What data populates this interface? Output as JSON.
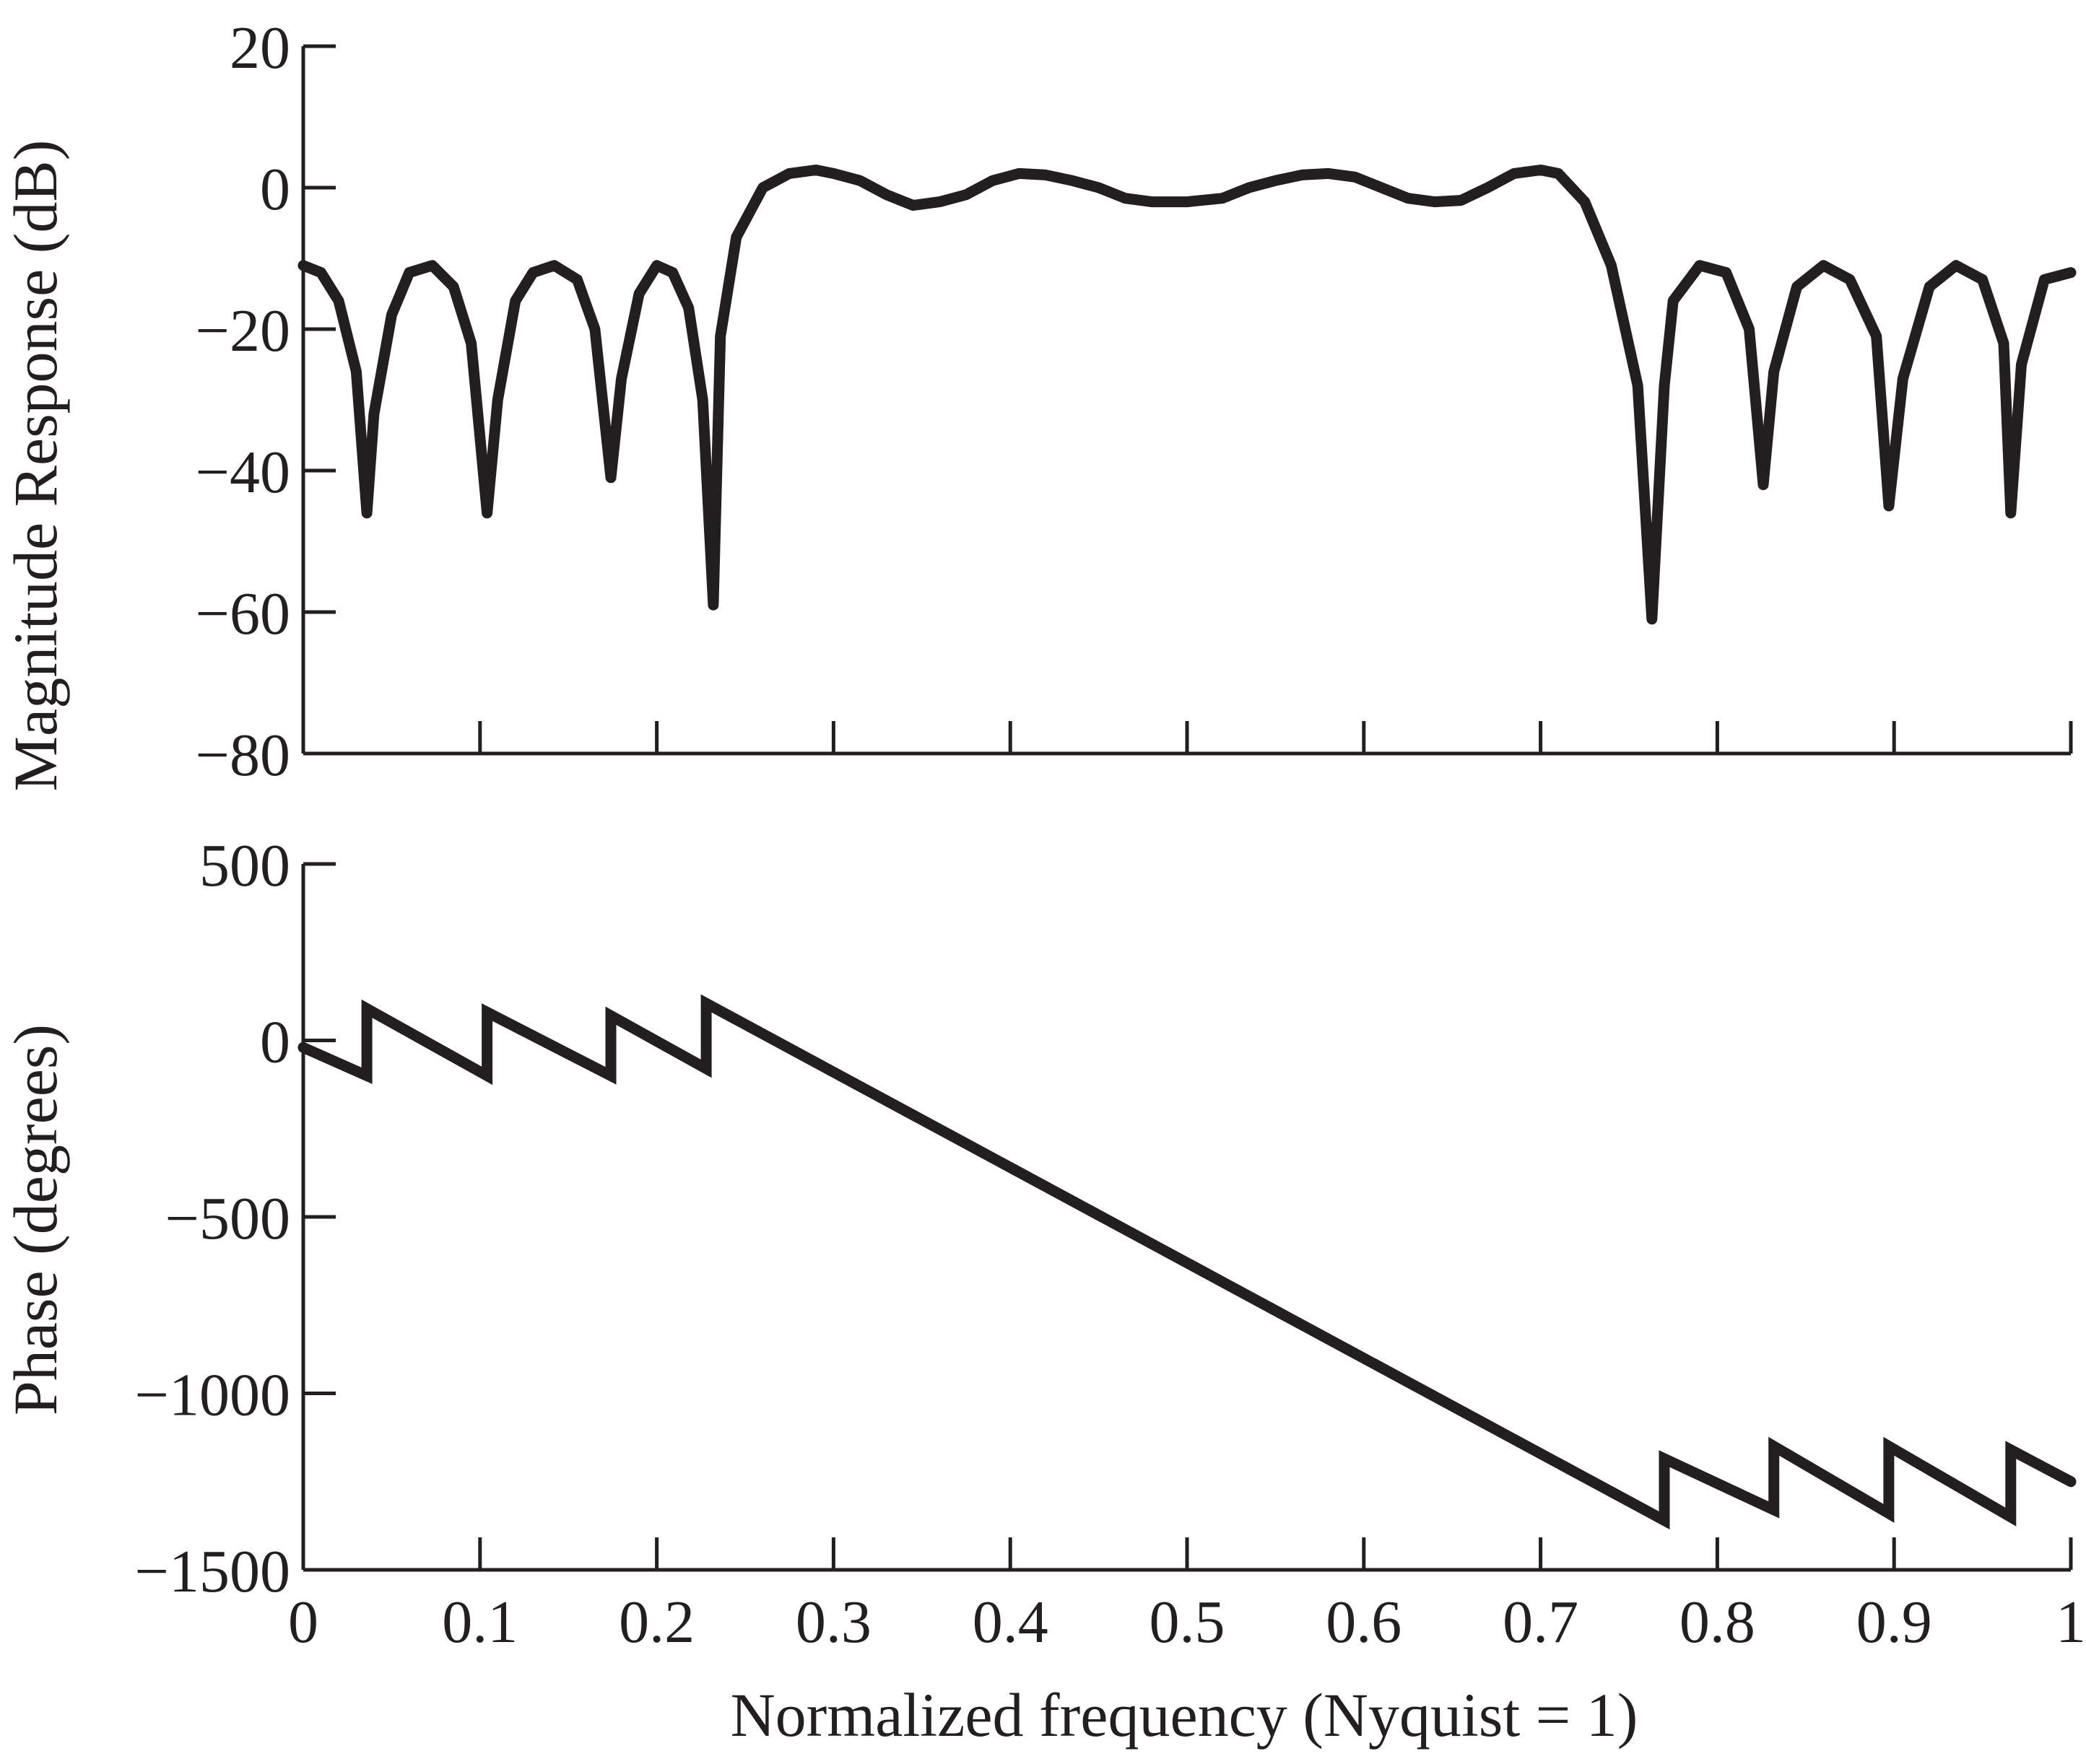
{
  "colors": {
    "line": "#231f20",
    "background": "#ffffff"
  },
  "xlabel": "Normalized frequency (Nyquist = 1)",
  "x_ticks": [
    0,
    0.1,
    0.2,
    0.3,
    0.4,
    0.5,
    0.6,
    0.7,
    0.8,
    0.9,
    1
  ],
  "x_tick_labels": [
    "0",
    "0.1",
    "0.2",
    "0.3",
    "0.4",
    "0.5",
    "0.6",
    "0.7",
    "0.8",
    "0.9",
    "1"
  ],
  "chart_data": [
    {
      "type": "line",
      "ylabel": "Magnitude Response (dB)",
      "xlim": [
        0,
        1
      ],
      "ylim": [
        -80,
        20
      ],
      "y_ticks": [
        20,
        0,
        -20,
        -40,
        -60,
        -80
      ],
      "y_tick_labels": [
        "20",
        "0",
        "−20",
        "−40",
        "−60",
        "−80"
      ],
      "grid": false,
      "series": [
        {
          "x": [
            0,
            0.01,
            0.02,
            0.03,
            0.036,
            0.04,
            0.05,
            0.06,
            0.073,
            0.085,
            0.095,
            0.104,
            0.11,
            0.12,
            0.13,
            0.142,
            0.155,
            0.165,
            0.174,
            0.18,
            0.19,
            0.2,
            0.209,
            0.218,
            0.226,
            0.232,
            0.236,
            0.245,
            0.26,
            0.275,
            0.29,
            0.3,
            0.315,
            0.33,
            0.345,
            0.36,
            0.375,
            0.39,
            0.405,
            0.42,
            0.435,
            0.45,
            0.465,
            0.48,
            0.5,
            0.52,
            0.535,
            0.55,
            0.565,
            0.58,
            0.595,
            0.61,
            0.625,
            0.64,
            0.655,
            0.67,
            0.685,
            0.7,
            0.71,
            0.725,
            0.74,
            0.755,
            0.763,
            0.77,
            0.775,
            0.79,
            0.805,
            0.818,
            0.826,
            0.832,
            0.845,
            0.86,
            0.875,
            0.89,
            0.897,
            0.905,
            0.92,
            0.935,
            0.95,
            0.962,
            0.966,
            0.972,
            0.985,
            1
          ],
          "y": [
            -11,
            -12,
            -16,
            -26,
            -46,
            -32,
            -18,
            -12,
            -11,
            -14,
            -22,
            -46,
            -30,
            -16,
            -12,
            -11,
            -13,
            -20,
            -41,
            -27,
            -15,
            -11,
            -12,
            -17,
            -30,
            -59,
            -21,
            -7,
            0,
            2,
            2.5,
            2,
            1,
            -1,
            -2.5,
            -2,
            -1,
            1,
            2,
            1.8,
            1,
            0,
            -1.5,
            -2,
            -2,
            -1.5,
            0,
            1,
            1.8,
            2,
            1.5,
            0,
            -1.5,
            -2,
            -1.8,
            0,
            2,
            2.5,
            2,
            -2,
            -11,
            -28,
            -61,
            -28,
            -16,
            -11,
            -12,
            -20,
            -42,
            -26,
            -14,
            -11,
            -13,
            -21,
            -45,
            -27,
            -14,
            -11,
            -13,
            -22,
            -46,
            -25,
            -13,
            -12
          ]
        }
      ]
    },
    {
      "type": "line",
      "ylabel": "Phase (degrees)",
      "xlim": [
        0,
        1
      ],
      "ylim": [
        -1500,
        500
      ],
      "y_ticks": [
        500,
        0,
        -500,
        -1000,
        -1500
      ],
      "y_tick_labels": [
        "500",
        "0",
        "−500",
        "−1000",
        "−1500"
      ],
      "grid": false,
      "series": [
        {
          "x": [
            0,
            0.036,
            0.036,
            0.104,
            0.104,
            0.174,
            0.174,
            0.228,
            0.228,
            0.77,
            0.77,
            0.832,
            0.832,
            0.897,
            0.897,
            0.966,
            0.966,
            1
          ],
          "y": [
            -20,
            -100,
            90,
            -100,
            80,
            -100,
            70,
            -80,
            105,
            -1360,
            -1185,
            -1330,
            -1150,
            -1340,
            -1150,
            -1350,
            -1160,
            -1250
          ]
        }
      ]
    }
  ]
}
